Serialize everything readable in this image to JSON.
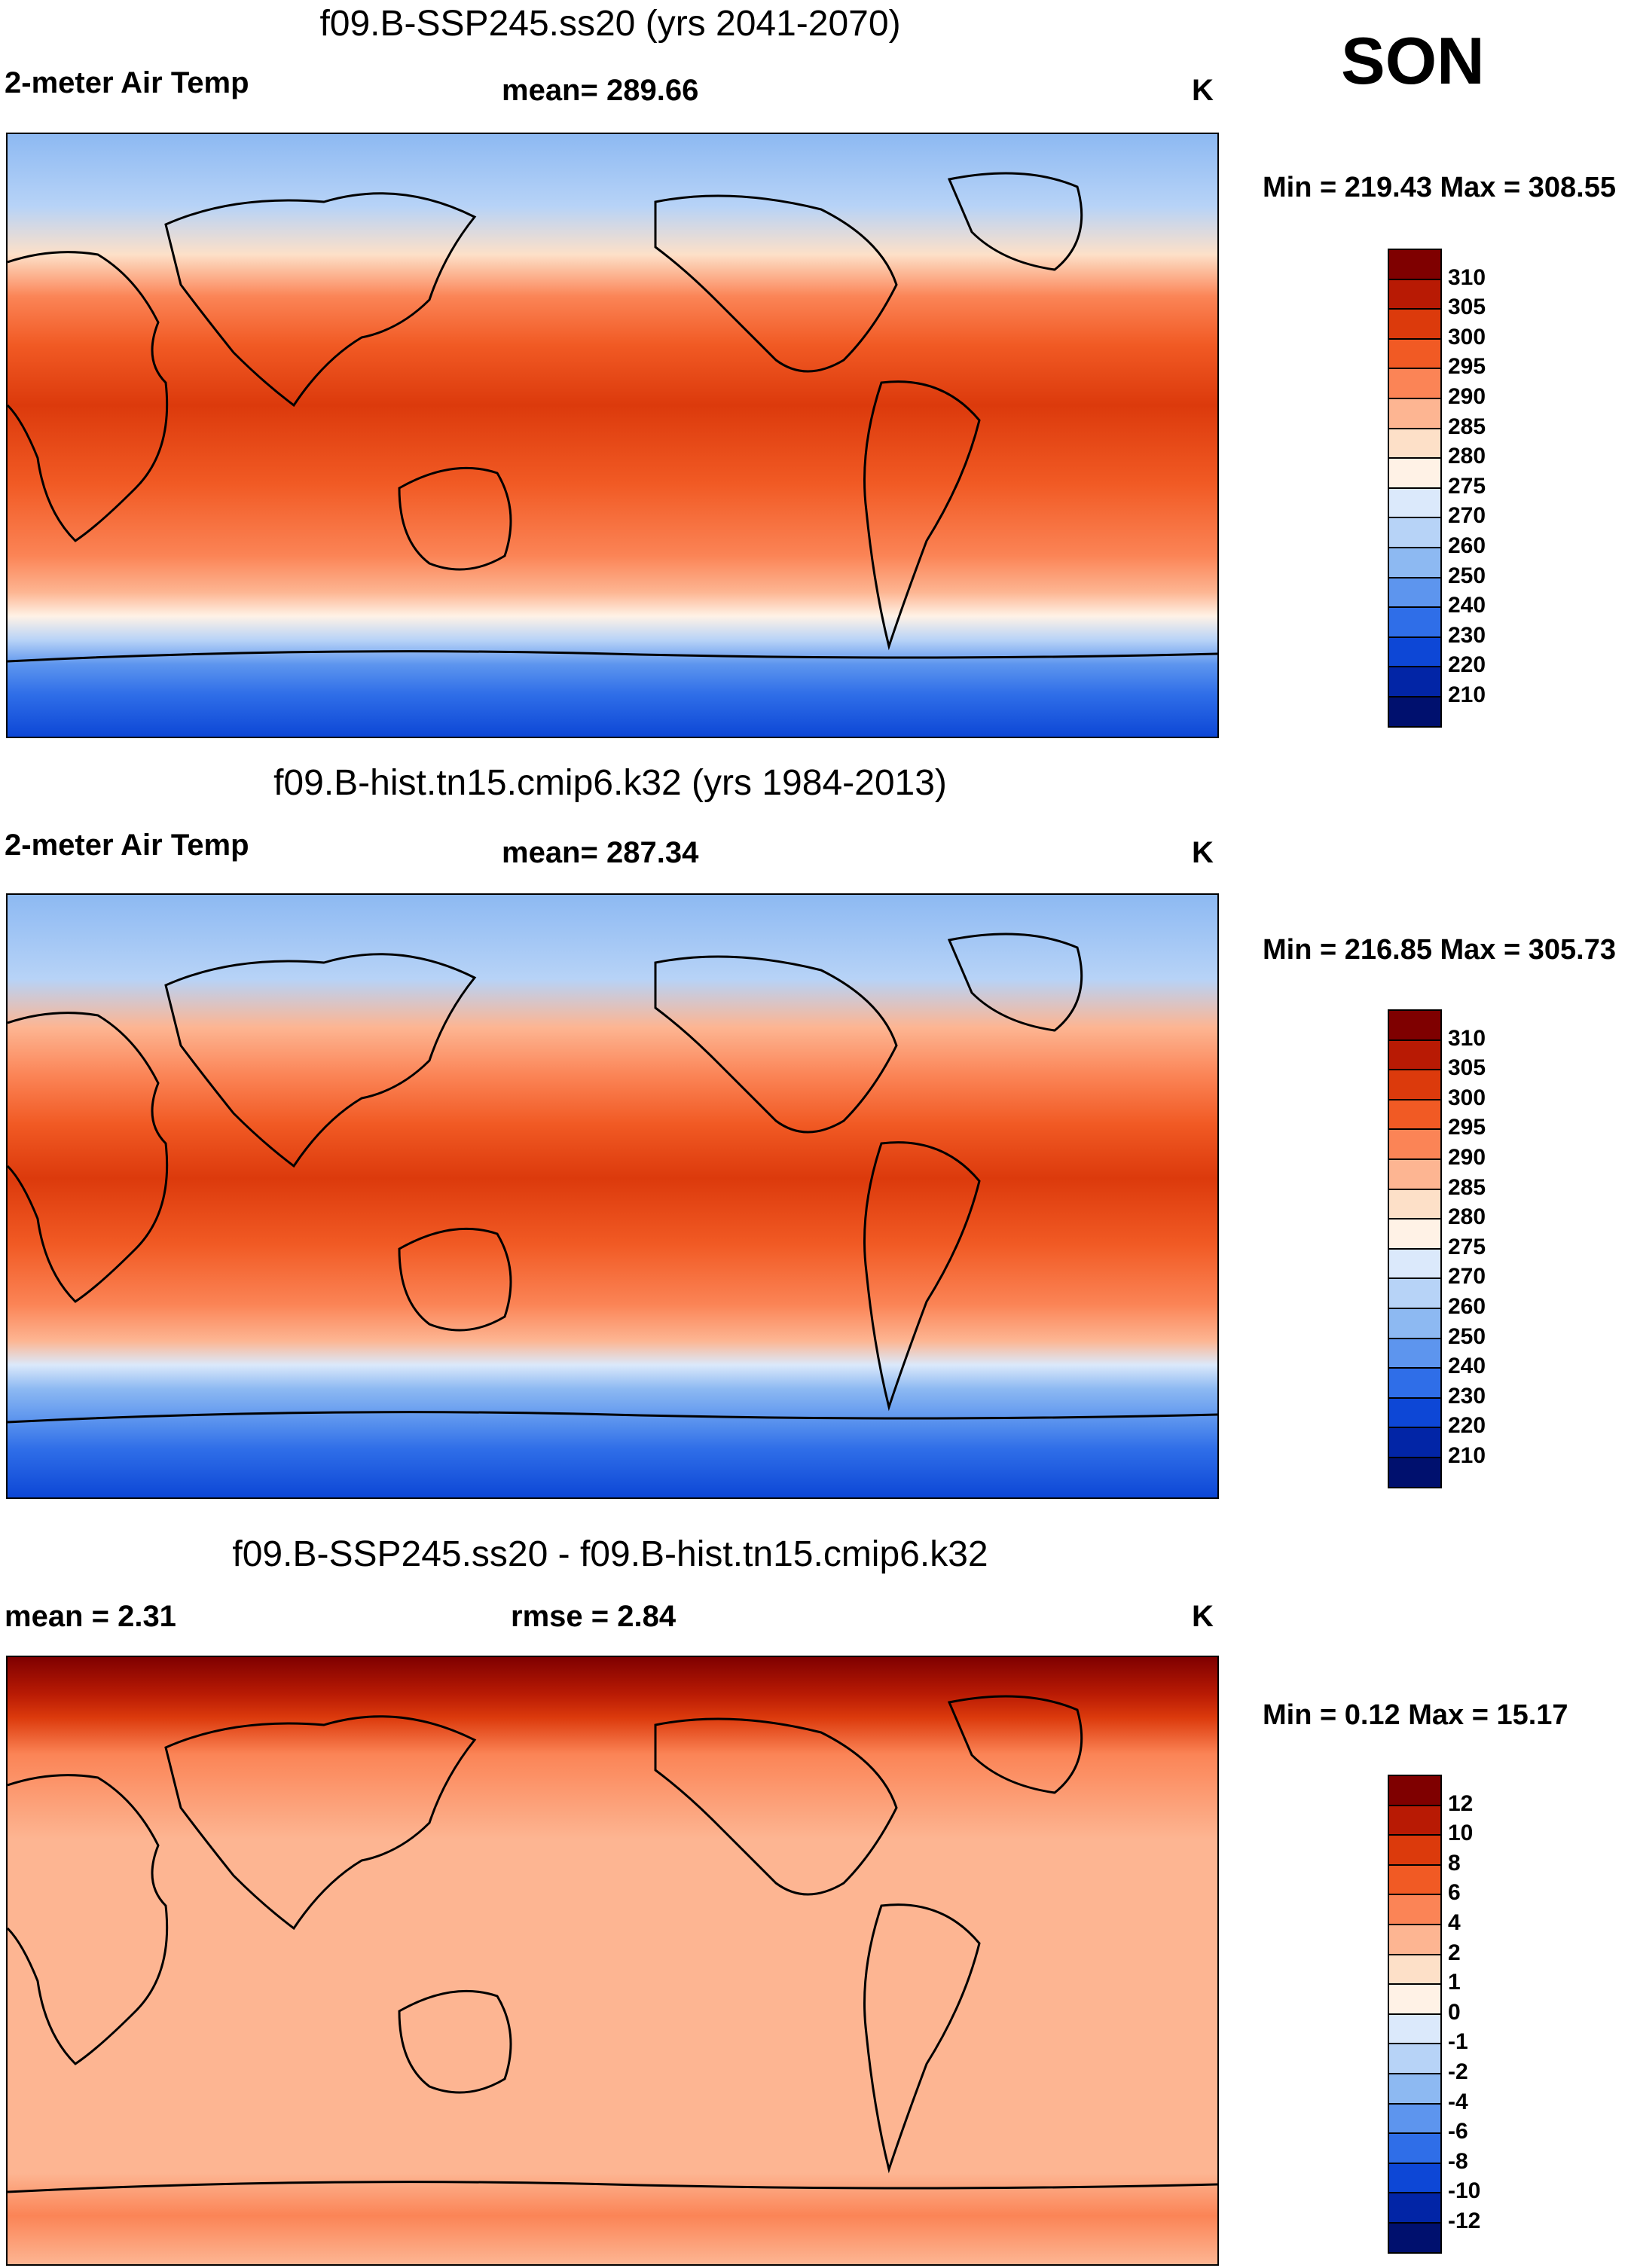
{
  "season": "SON",
  "panels": [
    {
      "title": "f09.B-SSP245.ss20 (yrs 2041-2070)",
      "left_label": "2-meter Air Temp",
      "center_label": "mean= 289.66",
      "units": "K",
      "minmax": "Min = 219.43 Max = 308.55",
      "colorbar_ticks": [
        "310",
        "305",
        "300",
        "295",
        "290",
        "285",
        "280",
        "275",
        "270",
        "260",
        "250",
        "240",
        "230",
        "220",
        "210"
      ],
      "colors": [
        "#7f0000",
        "#b81a04",
        "#dc3a0c",
        "#f15a24",
        "#fb8456",
        "#fdb592",
        "#fde0c8",
        "#fff2e6",
        "#dbe9fb",
        "#b7d3f7",
        "#8db9f2",
        "#5d95ee",
        "#2f6ee8",
        "#0d47d6",
        "#0225a6",
        "#00106e"
      ]
    },
    {
      "title": "f09.B-hist.tn15.cmip6.k32 (yrs 1984-2013)",
      "left_label": "2-meter Air Temp",
      "center_label": "mean= 287.34",
      "units": "K",
      "minmax": "Min = 216.85 Max = 305.73",
      "colorbar_ticks": [
        "310",
        "305",
        "300",
        "295",
        "290",
        "285",
        "280",
        "275",
        "270",
        "260",
        "250",
        "240",
        "230",
        "220",
        "210"
      ],
      "colors": [
        "#7f0000",
        "#b81a04",
        "#dc3a0c",
        "#f15a24",
        "#fb8456",
        "#fdb592",
        "#fde0c8",
        "#fff2e6",
        "#dbe9fb",
        "#b7d3f7",
        "#8db9f2",
        "#5d95ee",
        "#2f6ee8",
        "#0d47d6",
        "#0225a6",
        "#00106e"
      ]
    },
    {
      "title": "f09.B-SSP245.ss20 - f09.B-hist.tn15.cmip6.k32",
      "left_label": "mean =   2.31",
      "center_label": "rmse =   2.84",
      "units": "K",
      "minmax": "Min =   0.12 Max =  15.17",
      "colorbar_ticks": [
        "12",
        "10",
        "8",
        "6",
        "4",
        "2",
        "1",
        "0",
        "-1",
        "-2",
        "-4",
        "-6",
        "-8",
        "-10",
        "-12"
      ],
      "colors": [
        "#7f0000",
        "#b81a04",
        "#dc3a0c",
        "#f15a24",
        "#fb8456",
        "#fdb592",
        "#fde0c8",
        "#fff2e6",
        "#dbe9fb",
        "#b7d3f7",
        "#8db9f2",
        "#5d95ee",
        "#2f6ee8",
        "#0d47d6",
        "#0225a6",
        "#00106e"
      ]
    }
  ],
  "chart_data": [
    {
      "type": "heatmap",
      "title": "f09.B-SSP245.ss20 (yrs 2041-2070)",
      "variable": "2-meter Air Temp",
      "units": "K",
      "season": "SON",
      "mean": 289.66,
      "min": 219.43,
      "max": 308.55,
      "contour_levels": [
        210,
        220,
        230,
        240,
        250,
        260,
        270,
        275,
        280,
        285,
        290,
        295,
        300,
        305,
        310
      ]
    },
    {
      "type": "heatmap",
      "title": "f09.B-hist.tn15.cmip6.k32 (yrs 1984-2013)",
      "variable": "2-meter Air Temp",
      "units": "K",
      "season": "SON",
      "mean": 287.34,
      "min": 216.85,
      "max": 305.73,
      "contour_levels": [
        210,
        220,
        230,
        240,
        250,
        260,
        270,
        275,
        280,
        285,
        290,
        295,
        300,
        305,
        310
      ]
    },
    {
      "type": "heatmap",
      "title": "f09.B-SSP245.ss20 - f09.B-hist.tn15.cmip6.k32",
      "units": "K",
      "season": "SON",
      "mean": 2.31,
      "rmse": 2.84,
      "min": 0.12,
      "max": 15.17,
      "contour_levels": [
        -12,
        -10,
        -8,
        -6,
        -4,
        -2,
        -1,
        0,
        1,
        2,
        4,
        6,
        8,
        10,
        12
      ]
    }
  ]
}
